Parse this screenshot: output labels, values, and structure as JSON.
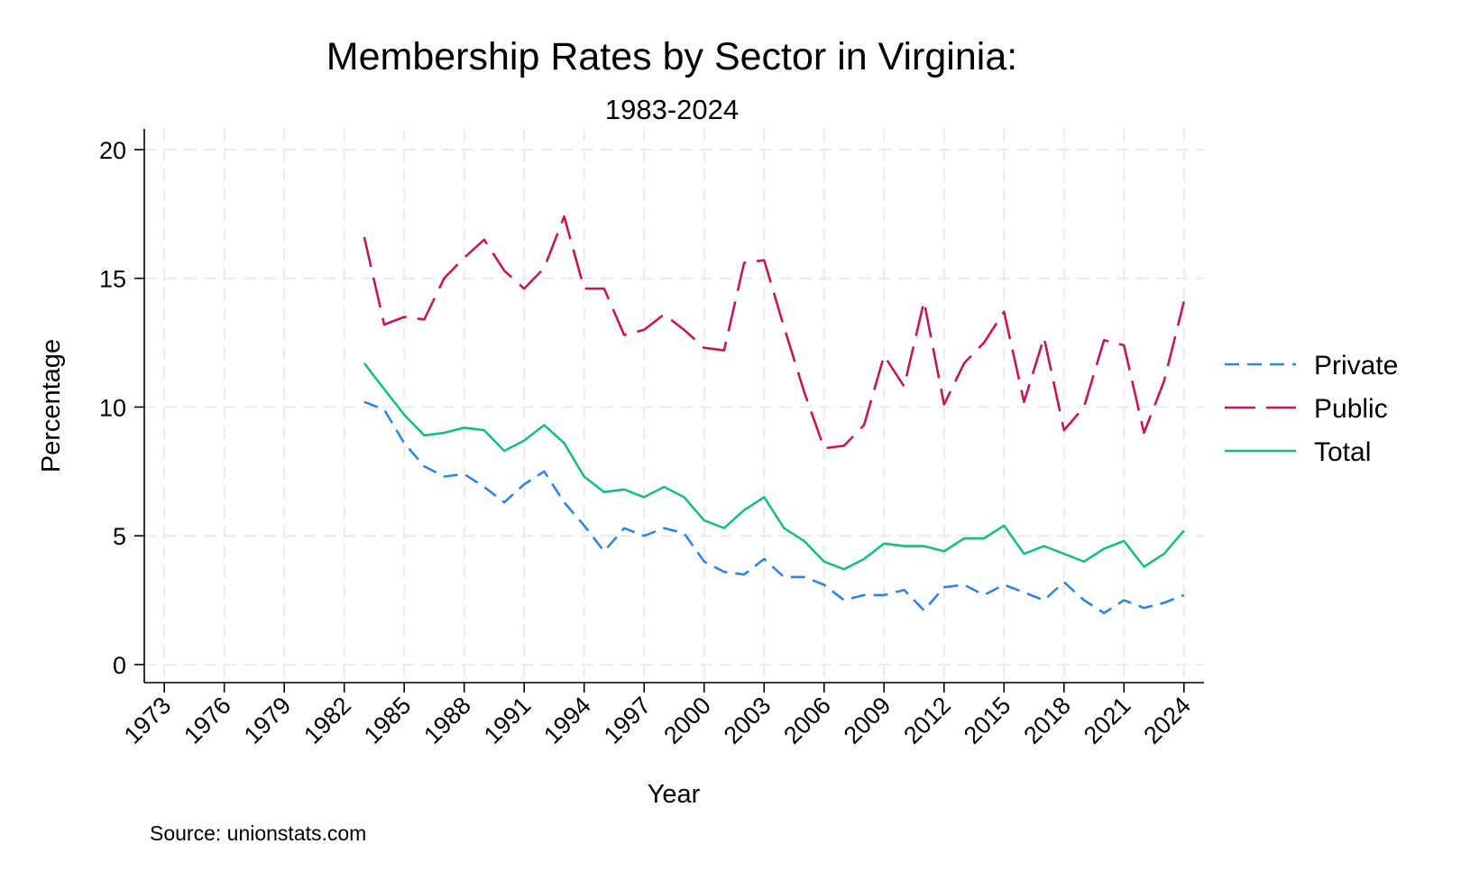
{
  "chart_data": {
    "type": "line",
    "title": "Membership Rates by Sector in Virginia:",
    "subtitle": "1983-2024",
    "xlabel": "Year",
    "ylabel": "Percentage",
    "source": "Source: unionstats.com",
    "xlim": [
      1972,
      2025
    ],
    "ylim": [
      -0.7,
      20.8
    ],
    "xticks": [
      1973,
      1976,
      1979,
      1982,
      1985,
      1988,
      1991,
      1994,
      1997,
      2000,
      2003,
      2006,
      2009,
      2012,
      2015,
      2018,
      2021,
      2024
    ],
    "xtick_labels": [
      "1973",
      "1976",
      "1979",
      "1982",
      "1985",
      "1988",
      "1991",
      "1994",
      "1997",
      "2000",
      "2003",
      "2006",
      "2009",
      "2012",
      "2015",
      "2018",
      "2021",
      "2024"
    ],
    "yticks": [
      0,
      5,
      10,
      15,
      20
    ],
    "ytick_labels": [
      "0",
      "5",
      "10",
      "15",
      "20"
    ],
    "grid": true,
    "legend_position": "right",
    "x": [
      1983,
      1984,
      1985,
      1986,
      1987,
      1988,
      1989,
      1990,
      1991,
      1992,
      1993,
      1994,
      1995,
      1996,
      1997,
      1998,
      1999,
      2000,
      2001,
      2002,
      2003,
      2004,
      2005,
      2006,
      2007,
      2008,
      2009,
      2010,
      2011,
      2012,
      2013,
      2014,
      2015,
      2016,
      2017,
      2018,
      2019,
      2020,
      2021,
      2022,
      2023,
      2024
    ],
    "series": [
      {
        "name": "Private",
        "color": "#2e86de",
        "dash": "short",
        "values": [
          10.2,
          9.9,
          8.6,
          7.7,
          7.3,
          7.4,
          6.9,
          6.3,
          7.0,
          7.5,
          6.3,
          5.4,
          4.4,
          5.3,
          5.0,
          5.3,
          5.1,
          4.0,
          3.6,
          3.5,
          4.1,
          3.4,
          3.4,
          3.1,
          2.5,
          2.7,
          2.7,
          2.9,
          2.1,
          3.0,
          3.1,
          2.7,
          3.1,
          2.8,
          2.5,
          3.2,
          2.5,
          2.0,
          2.5,
          2.2,
          2.4,
          2.7
        ]
      },
      {
        "name": "Public",
        "color": "#c2185b",
        "dash": "long",
        "values": [
          16.6,
          13.2,
          13.5,
          13.4,
          15.0,
          15.8,
          16.5,
          15.3,
          14.6,
          15.4,
          17.4,
          14.6,
          14.6,
          12.8,
          13.0,
          13.6,
          13.0,
          12.3,
          12.2,
          15.6,
          15.7,
          13.1,
          10.6,
          8.4,
          8.5,
          9.3,
          12.0,
          10.8,
          14.1,
          10.1,
          11.7,
          12.5,
          13.7,
          10.2,
          12.7,
          9.1,
          10.0,
          12.6,
          12.4,
          9.0,
          11.0,
          14.1
        ]
      },
      {
        "name": "Total",
        "color": "#1abc85",
        "dash": "solid",
        "values": [
          11.7,
          10.7,
          9.7,
          8.9,
          9.0,
          9.2,
          9.1,
          8.3,
          8.7,
          9.3,
          8.6,
          7.3,
          6.7,
          6.8,
          6.5,
          6.9,
          6.5,
          5.6,
          5.3,
          6.0,
          6.5,
          5.3,
          4.8,
          4.0,
          3.7,
          4.1,
          4.7,
          4.6,
          4.6,
          4.4,
          4.9,
          4.9,
          5.4,
          4.3,
          4.6,
          4.3,
          4.0,
          4.5,
          4.8,
          3.8,
          4.3,
          5.2
        ]
      }
    ]
  }
}
